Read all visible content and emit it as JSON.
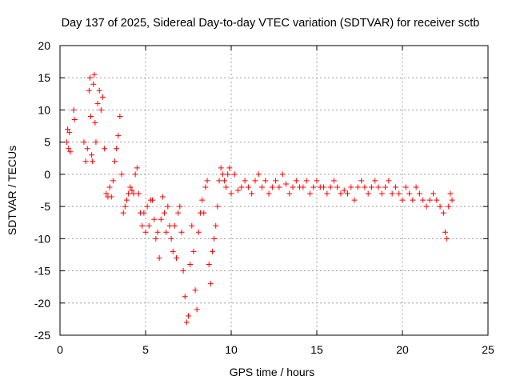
{
  "chart_data": {
    "type": "scatter",
    "title": "Day 137 of 2025, Sidereal Day-to-day VTEC variation (SDTVAR) for receiver sctb",
    "xlabel": "GPS time / hours",
    "ylabel": "SDTVAR / TECUs",
    "xlim": [
      0,
      25
    ],
    "ylim": [
      -25,
      20
    ],
    "xticks": [
      0,
      5,
      10,
      15,
      20,
      25
    ],
    "yticks": [
      -25,
      -20,
      -15,
      -10,
      -5,
      0,
      5,
      10,
      15,
      20
    ],
    "grid": true,
    "marker": "+",
    "color": "#ff0000",
    "series": [
      {
        "name": "sctb",
        "x": [
          0.4,
          0.45,
          0.5,
          0.55,
          0.6,
          0.8,
          0.85,
          1.4,
          1.5,
          1.6,
          1.7,
          1.75,
          1.8,
          1.85,
          1.9,
          1.95,
          2.0,
          2.05,
          2.1,
          2.2,
          2.3,
          2.4,
          2.5,
          2.6,
          2.7,
          2.8,
          2.9,
          3.0,
          3.1,
          3.2,
          3.3,
          3.4,
          3.5,
          3.6,
          3.7,
          3.8,
          3.9,
          4.0,
          4.1,
          4.2,
          4.3,
          4.4,
          4.5,
          4.6,
          4.7,
          4.8,
          4.9,
          5.0,
          5.1,
          5.2,
          5.3,
          5.4,
          5.5,
          5.6,
          5.7,
          5.8,
          5.9,
          6.0,
          6.1,
          6.2,
          6.3,
          6.4,
          6.5,
          6.6,
          6.7,
          6.8,
          6.9,
          7.0,
          7.1,
          7.2,
          7.3,
          7.4,
          7.5,
          7.6,
          7.7,
          7.8,
          7.9,
          8.0,
          8.1,
          8.2,
          8.3,
          8.4,
          8.5,
          8.6,
          8.7,
          8.8,
          8.9,
          9.0,
          9.1,
          9.2,
          9.3,
          9.4,
          9.5,
          9.6,
          9.7,
          9.8,
          9.9,
          10.0,
          10.2,
          10.4,
          10.6,
          10.8,
          11.0,
          11.2,
          11.4,
          11.6,
          11.8,
          12.0,
          12.2,
          12.4,
          12.6,
          12.8,
          13.0,
          13.2,
          13.4,
          13.6,
          13.8,
          14.0,
          14.2,
          14.4,
          14.6,
          14.8,
          15.0,
          15.2,
          15.4,
          15.6,
          15.8,
          16.0,
          16.2,
          16.4,
          16.6,
          16.8,
          17.0,
          17.2,
          17.4,
          17.6,
          17.8,
          18.0,
          18.2,
          18.4,
          18.6,
          18.8,
          19.0,
          19.2,
          19.4,
          19.6,
          19.8,
          20.0,
          20.2,
          20.4,
          20.6,
          20.8,
          21.0,
          21.2,
          21.4,
          21.6,
          21.8,
          22.0,
          22.2,
          22.4,
          22.5,
          22.6,
          22.7,
          22.8,
          22.9
        ],
        "y": [
          5,
          7,
          4,
          6.5,
          3.5,
          10,
          8.5,
          5,
          2,
          4,
          13,
          15,
          9,
          3,
          2,
          14,
          15.5,
          8,
          5,
          11,
          13,
          10,
          12,
          4,
          -3,
          -3.5,
          -2,
          -3.5,
          -1,
          2,
          4,
          6,
          9,
          0,
          -6,
          -5,
          -4,
          -3,
          -2,
          -2.5,
          -3,
          0,
          1,
          -3,
          -6,
          -8,
          -6,
          -9,
          -5,
          -8,
          -4,
          -4,
          -7,
          -10,
          -9,
          -13,
          -7,
          -3.5,
          -6,
          -9,
          -5,
          -8,
          -10,
          -12,
          -8,
          -13,
          -6,
          -5,
          -9,
          -15,
          -19,
          -23,
          -22,
          -14,
          -8,
          -12,
          -18,
          -21,
          -9,
          -6,
          -4,
          -6,
          -2,
          -1,
          -14,
          -17,
          -12,
          -10,
          -8,
          -5,
          -1,
          1,
          0,
          -1,
          -2,
          0,
          1,
          -3,
          0,
          -2.5,
          -2,
          -1,
          -2,
          -3,
          -1,
          0,
          -2,
          -1,
          -3,
          -2,
          -1,
          -2,
          0,
          -1.5,
          -3,
          -2,
          -1,
          -2,
          -2,
          -1,
          -3,
          -2,
          -1,
          -2,
          -2,
          -3,
          -2,
          -1,
          -2,
          -3,
          -2.5,
          -3,
          -2,
          -4,
          -2,
          -1,
          -2,
          -3,
          -2,
          -1,
          -2,
          -3,
          -2,
          -1,
          -3,
          -2,
          -3,
          -4,
          -2,
          -3,
          -4,
          -2,
          -3,
          -4,
          -5,
          -4,
          -3,
          -4,
          -5,
          -6,
          -9,
          -10,
          -5,
          -3,
          -4
        ]
      }
    ]
  }
}
